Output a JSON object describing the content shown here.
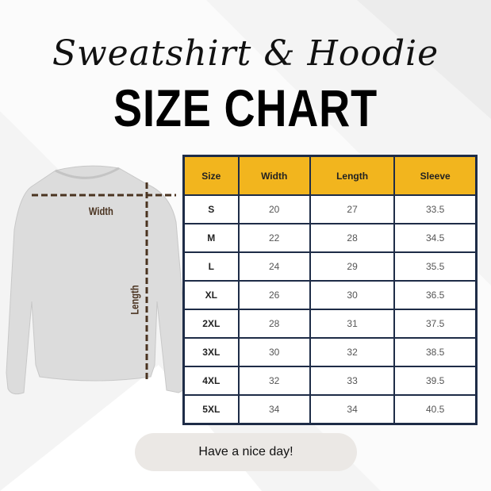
{
  "title_script": "Sweatshirt & Hoodie",
  "title_main": "SIZE CHART",
  "garment": {
    "width_label": "Width",
    "length_label": "Length"
  },
  "colors": {
    "header": "#f2b51e",
    "border": "#1e2c47",
    "measure_line": "#4a3320"
  },
  "table": {
    "headers": [
      "Size",
      "Width",
      "Length",
      "Sleeve"
    ],
    "rows": [
      [
        "S",
        "20",
        "27",
        "33.5"
      ],
      [
        "M",
        "22",
        "28",
        "34.5"
      ],
      [
        "L",
        "24",
        "29",
        "35.5"
      ],
      [
        "XL",
        "26",
        "30",
        "36.5"
      ],
      [
        "2XL",
        "28",
        "31",
        "37.5"
      ],
      [
        "3XL",
        "30",
        "32",
        "38.5"
      ],
      [
        "4XL",
        "32",
        "33",
        "39.5"
      ],
      [
        "5XL",
        "34",
        "34",
        "40.5"
      ]
    ]
  },
  "footer_button": "Have a nice day!"
}
